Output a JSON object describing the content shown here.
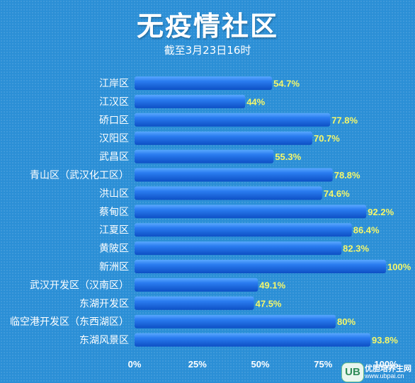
{
  "chart_data": {
    "type": "bar",
    "orientation": "horizontal",
    "title": "无疫情社区",
    "subtitle": "截至3月23日16时",
    "categories": [
      "江岸区",
      "江汉区",
      "硚口区",
      "汉阳区",
      "武昌区",
      "青山区（武汉化工区）",
      "洪山区",
      "蔡甸区",
      "江夏区",
      "黄陂区",
      "新洲区",
      "武汉开发区（汉南区）",
      "东湖开发区",
      "临空港开发区（东西湖区）",
      "东湖风景区"
    ],
    "values": [
      54.7,
      44,
      77.8,
      70.7,
      55.3,
      78.8,
      74.6,
      92.2,
      86.4,
      82.3,
      100,
      49.1,
      47.5,
      80,
      93.8
    ],
    "value_labels": [
      "54.7%",
      "44%",
      "77.8%",
      "70.7%",
      "55.3%",
      "78.8%",
      "74.6%",
      "92.2%",
      "86.4%",
      "82.3%",
      "100%",
      "49.1%",
      "47.5%",
      "80%",
      "93.8%"
    ],
    "x_ticks": [
      0,
      25,
      50,
      75,
      100
    ],
    "x_tick_labels": [
      "0%",
      "25%",
      "50%",
      "75%",
      "100%"
    ],
    "xlim": [
      0,
      100
    ],
    "grid": false,
    "colors": {
      "background": "#2b8fd6",
      "bar": "#1f6fe0",
      "value_label": "#f5f76a",
      "text": "#ffffff"
    }
  },
  "watermark": {
    "badge": "UB",
    "name": "优胆培养生网",
    "url": "www.ubpai.cn"
  }
}
